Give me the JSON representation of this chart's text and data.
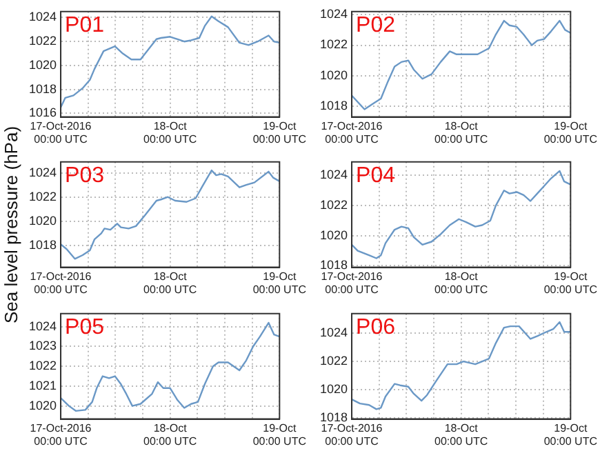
{
  "chart_data": [
    {
      "type": "line",
      "title": "P01",
      "color": "#6a98c6",
      "grid": true,
      "xlim": [
        "2016-10-17",
        "2016-10-19"
      ],
      "ylim": [
        1015.7,
        1024.5
      ],
      "yticks": [
        1016,
        1018,
        1020,
        1022,
        1024
      ],
      "xticks": [
        {
          "value": "2016-10-17",
          "label": "17-Oct-2016\n00:00 UTC"
        },
        {
          "value": "2016-10-17T06:00",
          "label": null
        },
        {
          "value": "2016-10-17T12:00",
          "label": null
        },
        {
          "value": "2016-10-17T18:00",
          "label": null
        },
        {
          "value": "2016-10-18",
          "label": "18-Oct\n00:00 UTC"
        },
        {
          "value": "2016-10-18T06:00",
          "label": null
        },
        {
          "value": "2016-10-18T12:00",
          "label": null
        },
        {
          "value": "2016-10-18T18:00",
          "label": null
        },
        {
          "value": "2016-10-19",
          "label": "19-Oct\n00:00 UTC"
        }
      ],
      "x": [
        "2016-10-17T00:00",
        "2016-10-17T01:00",
        "2016-10-17T02:48",
        "2016-10-17T04:48",
        "2016-10-17T06:24",
        "2016-10-17T07:24",
        "2016-10-17T09:24",
        "2016-10-17T11:54",
        "2016-10-17T13:36",
        "2016-10-17T15:30",
        "2016-10-17T17:30",
        "2016-10-17T21:00",
        "2016-10-17T22:00",
        "2016-10-18T00:00",
        "2016-10-18T03:06",
        "2016-10-18T04:36",
        "2016-10-18T06:24",
        "2016-10-18T07:36",
        "2016-10-18T09:06",
        "2016-10-18T10:36",
        "2016-10-18T12:42",
        "2016-10-18T15:12",
        "2016-10-18T17:12",
        "2016-10-18T19:12",
        "2016-10-18T21:36",
        "2016-10-18T22:48",
        "2016-10-19T00:00"
      ],
      "values": [
        1016.5,
        1017.3,
        1017.5,
        1018.1,
        1018.8,
        1019.7,
        1021.2,
        1021.6,
        1021.0,
        1020.5,
        1020.5,
        1022.2,
        1022.3,
        1022.4,
        1022.0,
        1022.1,
        1022.3,
        1023.3,
        1024.1,
        1023.7,
        1023.2,
        1021.9,
        1021.7,
        1022.0,
        1022.5,
        1022.0,
        1021.9
      ]
    },
    {
      "type": "line",
      "title": "P02",
      "color": "#6a98c6",
      "grid": true,
      "xlim": [
        "2016-10-17",
        "2016-10-19"
      ],
      "ylim": [
        1017.3,
        1024.2
      ],
      "yticks": [
        1018,
        1020,
        1022,
        1024
      ],
      "xticks": [
        {
          "value": "2016-10-17",
          "label": "17-Oct-2016\n00:00 UTC"
        },
        {
          "value": "2016-10-17T06:00",
          "label": null
        },
        {
          "value": "2016-10-17T12:00",
          "label": null
        },
        {
          "value": "2016-10-17T18:00",
          "label": null
        },
        {
          "value": "2016-10-18",
          "label": "18-Oct\n00:00 UTC"
        },
        {
          "value": "2016-10-18T06:00",
          "label": null
        },
        {
          "value": "2016-10-18T12:00",
          "label": null
        },
        {
          "value": "2016-10-18T18:00",
          "label": null
        },
        {
          "value": "2016-10-19",
          "label": "19-Oct\n00:00 UTC"
        }
      ],
      "x": [
        "2016-10-17T00:00",
        "2016-10-17T02:48",
        "2016-10-17T04:48",
        "2016-10-17T06:24",
        "2016-10-17T07:54",
        "2016-10-17T09:24",
        "2016-10-17T10:54",
        "2016-10-17T12:24",
        "2016-10-17T13:36",
        "2016-10-17T15:30",
        "2016-10-17T17:30",
        "2016-10-17T19:30",
        "2016-10-17T21:30",
        "2016-10-17T23:00",
        "2016-10-18T01:36",
        "2016-10-18T03:36",
        "2016-10-18T06:06",
        "2016-10-18T07:36",
        "2016-10-18T09:24",
        "2016-10-18T10:36",
        "2016-10-18T12:12",
        "2016-10-18T13:42",
        "2016-10-18T15:30",
        "2016-10-18T16:42",
        "2016-10-18T18:12",
        "2016-10-18T19:42",
        "2016-10-18T21:36",
        "2016-10-18T22:48",
        "2016-10-19T00:00"
      ],
      "values": [
        1018.7,
        1017.8,
        1018.2,
        1018.5,
        1019.6,
        1020.6,
        1020.9,
        1021.0,
        1020.4,
        1019.8,
        1020.1,
        1020.9,
        1021.6,
        1021.4,
        1021.4,
        1021.4,
        1021.8,
        1022.7,
        1023.6,
        1023.3,
        1023.2,
        1022.7,
        1022.0,
        1022.3,
        1022.4,
        1022.9,
        1023.6,
        1023.0,
        1022.8
      ]
    },
    {
      "type": "line",
      "title": "P03",
      "ylabel": "Sea level pressure (hPa)",
      "color": "#6a98c6",
      "grid": true,
      "xlim": [
        "2016-10-17",
        "2016-10-19"
      ],
      "ylim": [
        1016.2,
        1024.9
      ],
      "yticks": [
        1018,
        1020,
        1022,
        1024
      ],
      "xticks": [
        {
          "value": "2016-10-17",
          "label": "17-Oct-2016\n00:00 UTC"
        },
        {
          "value": "2016-10-17T06:00",
          "label": null
        },
        {
          "value": "2016-10-17T12:00",
          "label": null
        },
        {
          "value": "2016-10-17T18:00",
          "label": null
        },
        {
          "value": "2016-10-18",
          "label": "18-Oct\n00:00 UTC"
        },
        {
          "value": "2016-10-18T06:00",
          "label": null
        },
        {
          "value": "2016-10-18T12:00",
          "label": null
        },
        {
          "value": "2016-10-18T18:00",
          "label": null
        },
        {
          "value": "2016-10-19",
          "label": "19-Oct\n00:00 UTC"
        }
      ],
      "x": [
        "2016-10-17T00:00",
        "2016-10-17T01:18",
        "2016-10-17T03:06",
        "2016-10-17T04:48",
        "2016-10-17T06:24",
        "2016-10-17T07:24",
        "2016-10-17T08:54",
        "2016-10-17T09:36",
        "2016-10-17T10:54",
        "2016-10-17T12:24",
        "2016-10-17T13:12",
        "2016-10-17T14:54",
        "2016-10-17T16:30",
        "2016-10-17T18:30",
        "2016-10-17T21:00",
        "2016-10-17T22:00",
        "2016-10-17T23:30",
        "2016-10-18T01:06",
        "2016-10-18T03:36",
        "2016-10-18T05:36",
        "2016-10-18T07:06",
        "2016-10-18T09:06",
        "2016-10-18T10:06",
        "2016-10-18T11:12",
        "2016-10-18T12:42",
        "2016-10-18T15:12",
        "2016-10-18T16:42",
        "2016-10-18T18:30",
        "2016-10-18T21:36",
        "2016-10-18T22:36",
        "2016-10-19T00:00"
      ],
      "values": [
        1018.1,
        1017.7,
        1016.9,
        1017.2,
        1017.6,
        1018.5,
        1019.0,
        1019.4,
        1019.3,
        1019.8,
        1019.5,
        1019.4,
        1019.6,
        1020.5,
        1021.7,
        1021.8,
        1022.0,
        1021.7,
        1021.6,
        1021.9,
        1022.9,
        1024.2,
        1023.8,
        1023.9,
        1023.7,
        1022.8,
        1023.0,
        1023.2,
        1024.1,
        1023.6,
        1023.3
      ]
    },
    {
      "type": "line",
      "title": "P04",
      "color": "#6a98c6",
      "grid": true,
      "xlim": [
        "2016-10-17",
        "2016-10-19"
      ],
      "ylim": [
        1017.9,
        1024.9
      ],
      "yticks": [
        1018,
        1020,
        1022,
        1024
      ],
      "xticks": [
        {
          "value": "2016-10-17",
          "label": "17-Oct-2016\n00:00 UTC"
        },
        {
          "value": "2016-10-17T06:00",
          "label": null
        },
        {
          "value": "2016-10-17T12:00",
          "label": null
        },
        {
          "value": "2016-10-17T18:00",
          "label": null
        },
        {
          "value": "2016-10-18",
          "label": "18-Oct\n00:00 UTC"
        },
        {
          "value": "2016-10-18T06:00",
          "label": null
        },
        {
          "value": "2016-10-18T12:00",
          "label": null
        },
        {
          "value": "2016-10-18T18:00",
          "label": null
        },
        {
          "value": "2016-10-19",
          "label": "19-Oct\n00:00 UTC"
        }
      ],
      "x": [
        "2016-10-17T00:00",
        "2016-10-17T01:18",
        "2016-10-17T03:48",
        "2016-10-17T05:24",
        "2016-10-17T06:24",
        "2016-10-17T07:24",
        "2016-10-17T09:24",
        "2016-10-17T10:54",
        "2016-10-17T12:24",
        "2016-10-17T13:36",
        "2016-10-17T15:30",
        "2016-10-17T17:30",
        "2016-10-17T19:30",
        "2016-10-17T21:30",
        "2016-10-17T23:30",
        "2016-10-18T01:06",
        "2016-10-18T03:06",
        "2016-10-18T04:36",
        "2016-10-18T06:24",
        "2016-10-18T07:36",
        "2016-10-18T09:24",
        "2016-10-18T10:36",
        "2016-10-18T12:12",
        "2016-10-18T13:42",
        "2016-10-18T15:12",
        "2016-10-18T16:42",
        "2016-10-18T18:12",
        "2016-10-18T19:42",
        "2016-10-18T21:36",
        "2016-10-18T22:36",
        "2016-10-19T00:00"
      ],
      "values": [
        1019.4,
        1019.0,
        1018.7,
        1018.5,
        1018.7,
        1019.5,
        1020.4,
        1020.6,
        1020.5,
        1019.9,
        1019.4,
        1019.6,
        1020.1,
        1020.7,
        1021.1,
        1020.9,
        1020.6,
        1020.7,
        1021.0,
        1022.0,
        1023.0,
        1022.8,
        1022.9,
        1022.7,
        1022.3,
        1022.8,
        1023.3,
        1023.8,
        1024.3,
        1023.6,
        1023.4
      ]
    },
    {
      "type": "line",
      "title": "P05",
      "color": "#6a98c6",
      "grid": true,
      "xlim": [
        "2016-10-17",
        "2016-10-19"
      ],
      "ylim": [
        1019.34,
        1024.66
      ],
      "yticks": [
        1020,
        1021,
        1022,
        1023,
        1024
      ],
      "xticks": [
        {
          "value": "2016-10-17",
          "label": "17-Oct-2016\n00:00 UTC"
        },
        {
          "value": "2016-10-17T06:00",
          "label": null
        },
        {
          "value": "2016-10-17T12:00",
          "label": null
        },
        {
          "value": "2016-10-17T18:00",
          "label": null
        },
        {
          "value": "2016-10-18",
          "label": "18-Oct\n00:00 UTC"
        },
        {
          "value": "2016-10-18T06:00",
          "label": null
        },
        {
          "value": "2016-10-18T12:00",
          "label": null
        },
        {
          "value": "2016-10-18T18:00",
          "label": null
        },
        {
          "value": "2016-10-19",
          "label": "19-Oct\n00:00 UTC"
        }
      ],
      "x": [
        "2016-10-17T00:00",
        "2016-10-17T01:48",
        "2016-10-17T03:18",
        "2016-10-17T05:24",
        "2016-10-17T06:54",
        "2016-10-17T07:54",
        "2016-10-17T09:12",
        "2016-10-17T10:36",
        "2016-10-17T11:54",
        "2016-10-17T13:12",
        "2016-10-17T14:24",
        "2016-10-17T15:42",
        "2016-10-17T17:30",
        "2016-10-17T18:30",
        "2016-10-17T20:00",
        "2016-10-17T21:18",
        "2016-10-17T22:30",
        "2016-10-18T00:00",
        "2016-10-18T01:36",
        "2016-10-18T03:06",
        "2016-10-18T04:36",
        "2016-10-18T06:06",
        "2016-10-18T07:36",
        "2016-10-18T09:24",
        "2016-10-18T10:36",
        "2016-10-18T12:42",
        "2016-10-18T15:12",
        "2016-10-18T16:42",
        "2016-10-18T18:12",
        "2016-10-18T19:42",
        "2016-10-18T21:36",
        "2016-10-18T22:48",
        "2016-10-19T00:00"
      ],
      "values": [
        1020.4,
        1020.0,
        1019.75,
        1019.8,
        1020.2,
        1020.9,
        1021.5,
        1021.4,
        1021.5,
        1021.1,
        1020.6,
        1020.0,
        1020.1,
        1020.3,
        1020.6,
        1021.2,
        1020.9,
        1020.9,
        1020.3,
        1019.9,
        1020.1,
        1020.2,
        1021.1,
        1022.0,
        1022.2,
        1022.2,
        1021.8,
        1022.3,
        1023.0,
        1023.5,
        1024.2,
        1023.6,
        1023.5
      ]
    },
    {
      "type": "line",
      "title": "P06",
      "color": "#6a98c6",
      "grid": true,
      "xlim": [
        "2016-10-17",
        "2016-10-19"
      ],
      "ylim": [
        1017.9,
        1025.4
      ],
      "yticks": [
        1018,
        1020,
        1022,
        1024
      ],
      "xticks": [
        {
          "value": "2016-10-17",
          "label": "17-Oct-2016\n00:00 UTC"
        },
        {
          "value": "2016-10-17T06:00",
          "label": null
        },
        {
          "value": "2016-10-17T12:00",
          "label": null
        },
        {
          "value": "2016-10-17T18:00",
          "label": null
        },
        {
          "value": "2016-10-18",
          "label": "18-Oct\n00:00 UTC"
        },
        {
          "value": "2016-10-18T06:00",
          "label": null
        },
        {
          "value": "2016-10-18T12:00",
          "label": null
        },
        {
          "value": "2016-10-18T18:00",
          "label": null
        },
        {
          "value": "2016-10-19",
          "label": "19-Oct\n00:00 UTC"
        }
      ],
      "x": [
        "2016-10-17T00:00",
        "2016-10-17T01:48",
        "2016-10-17T03:48",
        "2016-10-17T05:24",
        "2016-10-17T06:24",
        "2016-10-17T07:24",
        "2016-10-17T09:24",
        "2016-10-17T10:36",
        "2016-10-17T12:24",
        "2016-10-17T13:36",
        "2016-10-17T15:18",
        "2016-10-17T16:30",
        "2016-10-17T18:30",
        "2016-10-17T21:00",
        "2016-10-17T23:00",
        "2016-10-18T00:30",
        "2016-10-18T03:06",
        "2016-10-18T04:36",
        "2016-10-18T06:06",
        "2016-10-18T07:36",
        "2016-10-18T09:24",
        "2016-10-18T10:48",
        "2016-10-18T12:42",
        "2016-10-18T15:12",
        "2016-10-18T16:42",
        "2016-10-18T18:42",
        "2016-10-18T20:12",
        "2016-10-18T21:36",
        "2016-10-18T22:36",
        "2016-10-19T00:00"
      ],
      "values": [
        1019.3,
        1019.0,
        1018.9,
        1018.6,
        1018.7,
        1019.5,
        1020.4,
        1020.3,
        1020.2,
        1019.7,
        1019.2,
        1019.6,
        1020.6,
        1021.8,
        1021.8,
        1022.0,
        1021.8,
        1022.0,
        1022.2,
        1023.3,
        1024.4,
        1024.5,
        1024.5,
        1023.6,
        1023.8,
        1024.1,
        1024.3,
        1024.8,
        1024.1,
        1024.1
      ]
    }
  ]
}
